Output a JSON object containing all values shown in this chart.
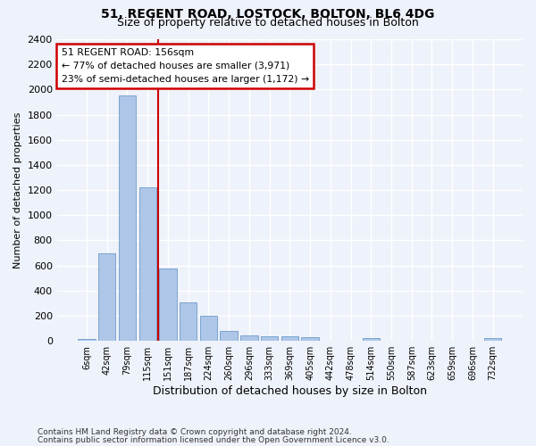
{
  "title1": "51, REGENT ROAD, LOSTOCK, BOLTON, BL6 4DG",
  "title2": "Size of property relative to detached houses in Bolton",
  "xlabel": "Distribution of detached houses by size in Bolton",
  "ylabel": "Number of detached properties",
  "bar_color": "#aec6e8",
  "bar_edge_color": "#5a8fc2",
  "categories": [
    "6sqm",
    "42sqm",
    "79sqm",
    "115sqm",
    "151sqm",
    "187sqm",
    "224sqm",
    "260sqm",
    "296sqm",
    "333sqm",
    "369sqm",
    "405sqm",
    "442sqm",
    "478sqm",
    "514sqm",
    "550sqm",
    "587sqm",
    "623sqm",
    "659sqm",
    "696sqm",
    "732sqm"
  ],
  "values": [
    15,
    700,
    1950,
    1225,
    575,
    305,
    200,
    80,
    45,
    35,
    35,
    30,
    5,
    5,
    25,
    5,
    5,
    5,
    5,
    5,
    20
  ],
  "ylim": [
    0,
    2400
  ],
  "yticks": [
    0,
    200,
    400,
    600,
    800,
    1000,
    1200,
    1400,
    1600,
    1800,
    2000,
    2200,
    2400
  ],
  "vline_x": 3.5,
  "annotation_text": "51 REGENT ROAD: 156sqm\n← 77% of detached houses are smaller (3,971)\n23% of semi-detached houses are larger (1,172) →",
  "annotation_box_color": "#ffffff",
  "annotation_box_edge": "#cc0000",
  "vline_color": "#cc0000",
  "footer1": "Contains HM Land Registry data © Crown copyright and database right 2024.",
  "footer2": "Contains public sector information licensed under the Open Government Licence v3.0.",
  "bg_color": "#eef2fa",
  "plot_bg_color": "#eef2fa",
  "grid_color": "#ffffff"
}
